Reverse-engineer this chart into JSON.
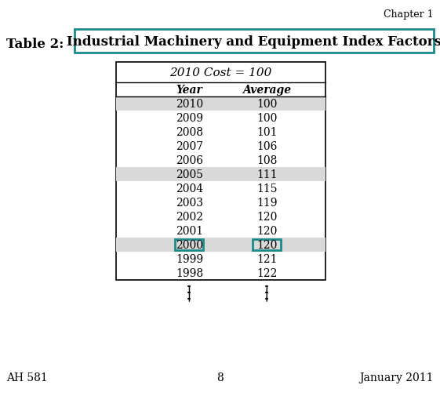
{
  "chapter_label": "Chapter 1",
  "title_prefix": "Table 2: ",
  "title_main": "Industrial Machinery and Equipment Index Factors",
  "subtitle": "2010 Cost = 100",
  "col_headers": [
    "Year",
    "Average"
  ],
  "rows": [
    [
      2010,
      100
    ],
    [
      2009,
      100
    ],
    [
      2008,
      101
    ],
    [
      2007,
      106
    ],
    [
      2006,
      108
    ],
    [
      2005,
      111
    ],
    [
      2004,
      115
    ],
    [
      2003,
      119
    ],
    [
      2002,
      120
    ],
    [
      2001,
      120
    ],
    [
      2000,
      120
    ],
    [
      1999,
      121
    ],
    [
      1998,
      122
    ]
  ],
  "shaded_rows": [
    0,
    5,
    10
  ],
  "highlighted_row": 10,
  "highlight_color": "#1a8a8a",
  "shade_color": "#d9d9d9",
  "table_border_color": "black",
  "title_border_color": "#1a8a8a",
  "footer_left": "AH 581",
  "footer_center": "8",
  "footer_right": "January 2011",
  "bg_color": "#ffffff"
}
